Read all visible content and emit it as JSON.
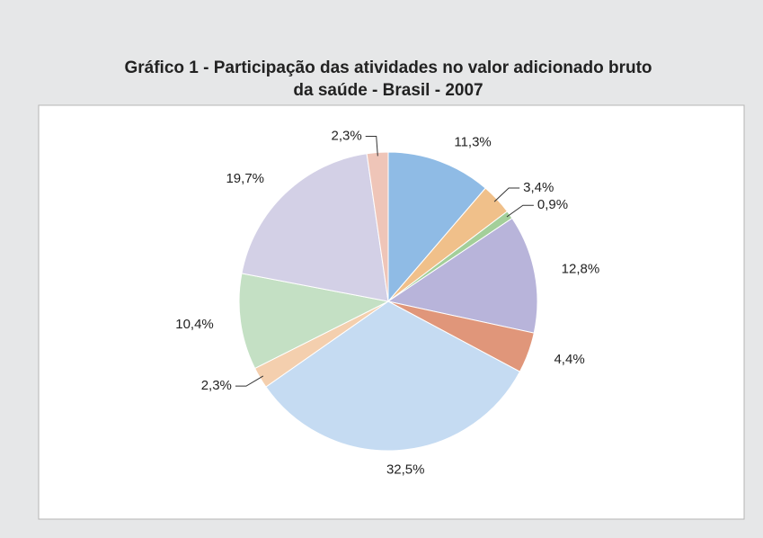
{
  "chart_data": {
    "type": "pie",
    "title": "Gráfico 1 - Participação das atividades no valor adicionado bruto da saúde - Brasil - 2007",
    "title_lines": [
      "Gráfico 1 - Participação das atividades no valor adicionado bruto",
      "da saúde - Brasil - 2007"
    ],
    "values": [
      11.3,
      3.4,
      0.9,
      12.8,
      4.4,
      32.5,
      2.3,
      10.4,
      19.7,
      2.3
    ],
    "value_labels": [
      "11,3%",
      "3,4%",
      "0,9%",
      "12,8%",
      "4,4%",
      "32,5%",
      "2,3%",
      "10,4%",
      "19,7%",
      "2,3%"
    ],
    "colors": [
      "#8fbbe5",
      "#f0c08a",
      "#a3cf9a",
      "#b8b4da",
      "#e0967a",
      "#c5dbf2",
      "#f4cfae",
      "#c4e0c4",
      "#d3d0e6",
      "#efc5b8"
    ]
  }
}
